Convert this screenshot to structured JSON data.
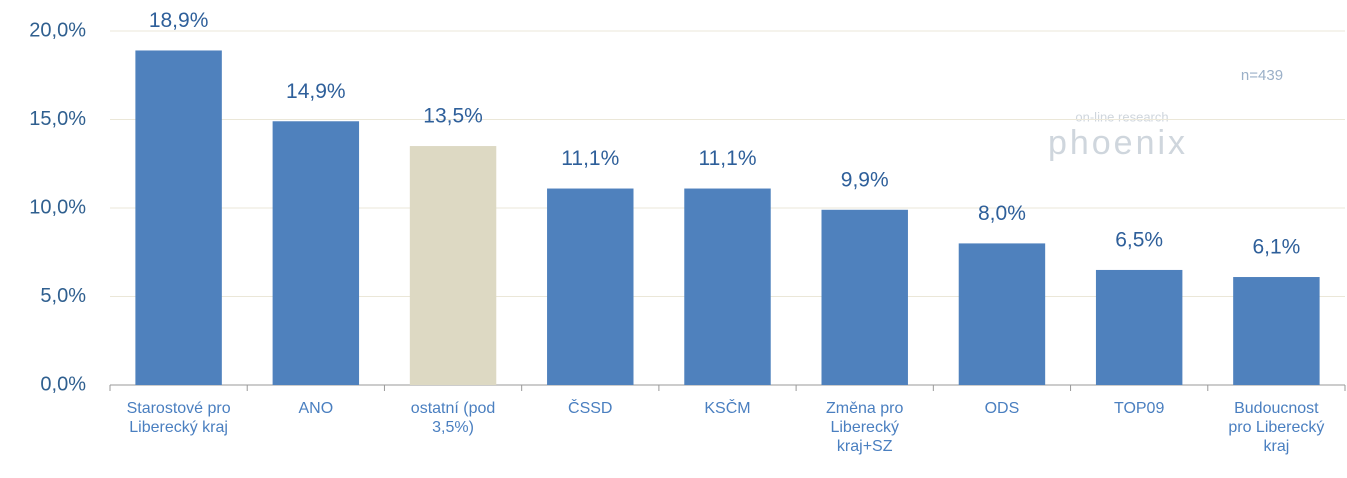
{
  "chart_data": {
    "type": "bar",
    "categories": [
      "Starostové pro Liberecký kraj",
      "ANO",
      "ostatní (pod 3,5%)",
      "ČSSD",
      "KSČM",
      "Změna pro Liberecký kraj+SZ",
      "ODS",
      "TOP09",
      "Budoucnost pro Liberecký kraj"
    ],
    "values": [
      18.9,
      14.9,
      13.5,
      11.1,
      11.1,
      9.9,
      8.0,
      6.5,
      6.1
    ],
    "value_labels": [
      "18,9%",
      "14,9%",
      "13,5%",
      "11,1%",
      "11,1%",
      "9,9%",
      "8,0%",
      "6,5%",
      "6,1%"
    ],
    "colors": [
      "#4f81bd",
      "#4f81bd",
      "#ddd9c3",
      "#4f81bd",
      "#4f81bd",
      "#4f81bd",
      "#4f81bd",
      "#4f81bd",
      "#4f81bd"
    ],
    "ylim": [
      0,
      20
    ],
    "yticks": [
      {
        "value": 0,
        "label": "0,0%"
      },
      {
        "value": 5,
        "label": "5,0%"
      },
      {
        "value": 10,
        "label": "10,0%"
      },
      {
        "value": 15,
        "label": "15,0%"
      },
      {
        "value": 20,
        "label": "20,0%"
      }
    ],
    "grid": true,
    "annotation": "n=439",
    "watermark": {
      "tagline": "on-line research",
      "name": "phoenix"
    }
  }
}
